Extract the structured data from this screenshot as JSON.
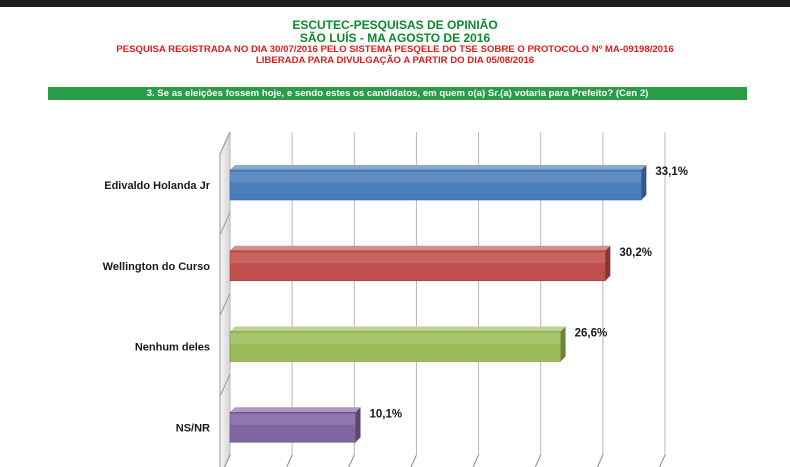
{
  "header": {
    "line1": "ESCUTEC-PESQUISAS DE OPINIÃO",
    "line2": "SÃO LUÍS - MA AGOSTO DE 2016",
    "line3": "PESQUISA REGISTRADA NO DIA 30/07/2016 PELO SISTEMA PESQELE DO TSE SOBRE O PROTOCOLO Nº MA-09198/2016",
    "line4": "LIBERADA PARA DIVULGAÇÃO A PARTIR DO DIA 05/08/2016",
    "question": "3. Se as eleições fossem hoje, e sendo estes os candidatos, em quem o(a) Sr.(a) votaria para Prefeito? (Cen 2)"
  },
  "colors": {
    "title_green": "#0a8a2a",
    "title_red": "#e01c1c",
    "question_bg": "#2a9c45"
  },
  "chart_data": {
    "type": "bar",
    "orientation": "horizontal",
    "style": "3d",
    "categories": [
      "Edivaldo Holanda Jr",
      "Wellington do Curso",
      "Nenhum deles",
      "NS/NR"
    ],
    "values": [
      33.1,
      30.2,
      26.6,
      10.1
    ],
    "value_labels": [
      "33,1%",
      "30,2%",
      "26,6%",
      "10,1%"
    ],
    "bar_colors": [
      "#4a7ebb",
      "#c0504d",
      "#9bbb59",
      "#8064a2"
    ],
    "xlim": [
      0,
      35
    ],
    "grid": true,
    "legend": "none"
  }
}
